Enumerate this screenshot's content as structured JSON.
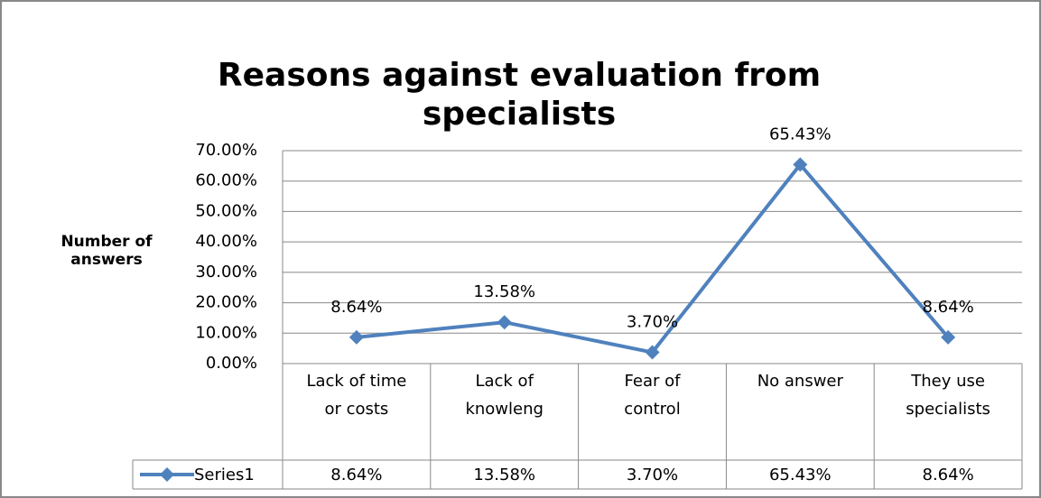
{
  "chart_data": {
    "type": "line",
    "title": "Reasons against evaluation from specialists",
    "y_label": "Number of answers",
    "categories": [
      "Lack of time or costs",
      "Lack of knowleng",
      "Fear of control",
      "No answer",
      "They use specialists"
    ],
    "series": [
      {
        "name": "Series1",
        "color": "#4f81bd",
        "values": [
          8.64,
          13.58,
          3.7,
          65.43,
          8.64
        ],
        "value_labels": [
          "8.64%",
          "13.58%",
          "3.70%",
          "65.43%",
          "8.64%"
        ]
      }
    ],
    "ylim": [
      0,
      70
    ],
    "yticks": [
      {
        "value": 0,
        "label": "0.00%"
      },
      {
        "value": 10,
        "label": "10.00%"
      },
      {
        "value": 20,
        "label": "20.00%"
      },
      {
        "value": 30,
        "label": "30.00%"
      },
      {
        "value": 40,
        "label": "40.00%"
      },
      {
        "value": 50,
        "label": "50.00%"
      },
      {
        "value": 60,
        "label": "60.00%"
      },
      {
        "value": 70,
        "label": "70.00%"
      }
    ],
    "grid": true,
    "data_table": true
  }
}
